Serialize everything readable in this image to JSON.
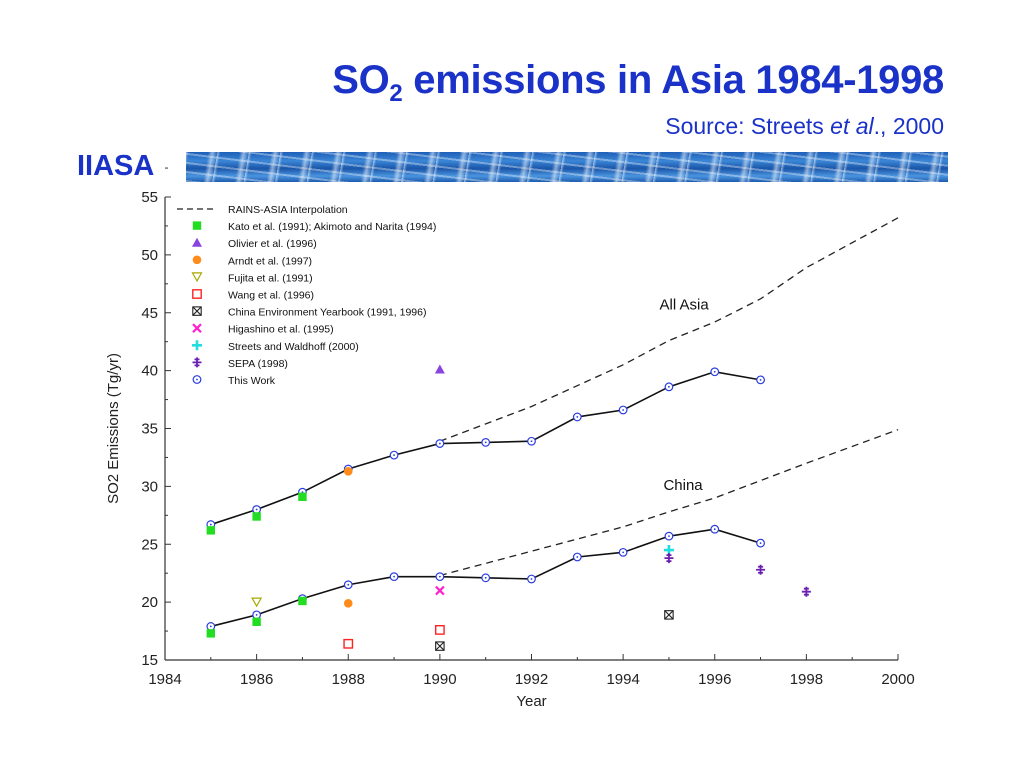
{
  "header": {
    "title_main": "SO",
    "title_sub": "2",
    "title_rest": " emissions in Asia 1984-1998",
    "source_prefix": "Source: Streets ",
    "source_italic": "et al",
    "source_suffix": "., 2000",
    "brand": "IIASA"
  },
  "colors": {
    "title": "#1a32c8",
    "this_work": "#2a3de0",
    "kato": "#22dd22",
    "olivier": "#8844dd",
    "arndt": "#ff8c1a",
    "fujita": "#a8a800",
    "wang": "#ff2222",
    "china_yb": "#222222",
    "higashino": "#ff22cc",
    "streets": "#22dddd",
    "sepa": "#6a1fb0"
  },
  "chart_data": {
    "type": "line",
    "xlabel": "Year",
    "ylabel": "SO2 Emissions (Tg/yr)",
    "xlim": [
      1984,
      2000
    ],
    "ylim": [
      15,
      55
    ],
    "x_ticks": [
      "1984",
      "1986",
      "1988",
      "1990",
      "1992",
      "1994",
      "1996",
      "1998",
      "2000"
    ],
    "y_ticks": [
      "15",
      "20",
      "25",
      "30",
      "35",
      "40",
      "45",
      "50",
      "55"
    ],
    "annotations": [
      "All Asia",
      "China"
    ],
    "legend": [
      "RAINS-ASIA Interpolation",
      "Kato et al. (1991); Akimoto and Narita (1994)",
      "Olivier et al. (1996)",
      "Arndt et al. (1997)",
      "Fujita et al. (1991)",
      "Wang et al. (1996)",
      "China Environment Yearbook (1991, 1996)",
      "Higashino et al. (1995)",
      "Streets and Waldhoff (2000)",
      "SEPA (1998)",
      "This Work"
    ],
    "series": [
      {
        "name": "This Work",
        "group": "All Asia",
        "x": [
          1985,
          1986,
          1987,
          1988,
          1989,
          1990,
          1991,
          1992,
          1993,
          1994,
          1995,
          1996,
          1997
        ],
        "values": [
          26.7,
          28.0,
          29.5,
          31.5,
          32.7,
          33.7,
          33.8,
          33.9,
          36.0,
          36.6,
          38.6,
          39.9,
          39.2
        ]
      },
      {
        "name": "This Work",
        "group": "China",
        "x": [
          1985,
          1986,
          1987,
          1988,
          1989,
          1990,
          1991,
          1992,
          1993,
          1994,
          1995,
          1996,
          1997
        ],
        "values": [
          17.9,
          18.9,
          20.3,
          21.5,
          22.2,
          22.2,
          22.1,
          22.0,
          23.9,
          24.3,
          25.7,
          26.3,
          25.1
        ]
      },
      {
        "name": "RAINS-ASIA Interpolation",
        "group": "All Asia",
        "x": [
          1990,
          1992,
          1994,
          1995,
          1996,
          1997,
          1998,
          2000
        ],
        "values": [
          33.9,
          36.9,
          40.5,
          42.6,
          44.2,
          46.2,
          48.9,
          53.2
        ]
      },
      {
        "name": "RAINS-ASIA Interpolation",
        "group": "China",
        "x": [
          1990,
          1992,
          1994,
          1995,
          1996,
          1997,
          1998,
          2000
        ],
        "values": [
          22.3,
          24.4,
          26.5,
          27.8,
          29.0,
          30.5,
          32.0,
          34.9
        ]
      }
    ],
    "points": [
      {
        "name": "Kato et al. (1991); Akimoto and Narita (1994)",
        "marker": "square-filled",
        "x": [
          1985,
          1986,
          1987,
          1985,
          1986,
          1987
        ],
        "values": [
          26.2,
          27.4,
          29.1,
          17.3,
          18.3,
          20.1
        ]
      },
      {
        "name": "Olivier et al. (1996)",
        "marker": "triangle-up-filled",
        "x": [
          1990
        ],
        "values": [
          40.1
        ]
      },
      {
        "name": "Arndt et al. (1997)",
        "marker": "circle-filled",
        "x": [
          1988,
          1988
        ],
        "values": [
          31.3,
          19.9
        ]
      },
      {
        "name": "Fujita et al. (1991)",
        "marker": "triangle-down-open",
        "x": [
          1986
        ],
        "values": [
          20.0
        ]
      },
      {
        "name": "Wang et al. (1996)",
        "marker": "square-open",
        "x": [
          1988,
          1990
        ],
        "values": [
          16.4,
          17.6
        ]
      },
      {
        "name": "China Environment Yearbook (1991, 1996)",
        "marker": "boxed-x",
        "x": [
          1990,
          1995
        ],
        "values": [
          16.2,
          18.9
        ]
      },
      {
        "name": "Higashino et al. (1995)",
        "marker": "x",
        "x": [
          1990
        ],
        "values": [
          21.0
        ]
      },
      {
        "name": "Streets and Waldhoff (2000)",
        "marker": "plus",
        "x": [
          1995
        ],
        "values": [
          24.5
        ]
      },
      {
        "name": "SEPA (1998)",
        "marker": "plus-bar",
        "x": [
          1995,
          1997,
          1998
        ],
        "values": [
          23.8,
          22.8,
          20.9
        ]
      }
    ]
  }
}
